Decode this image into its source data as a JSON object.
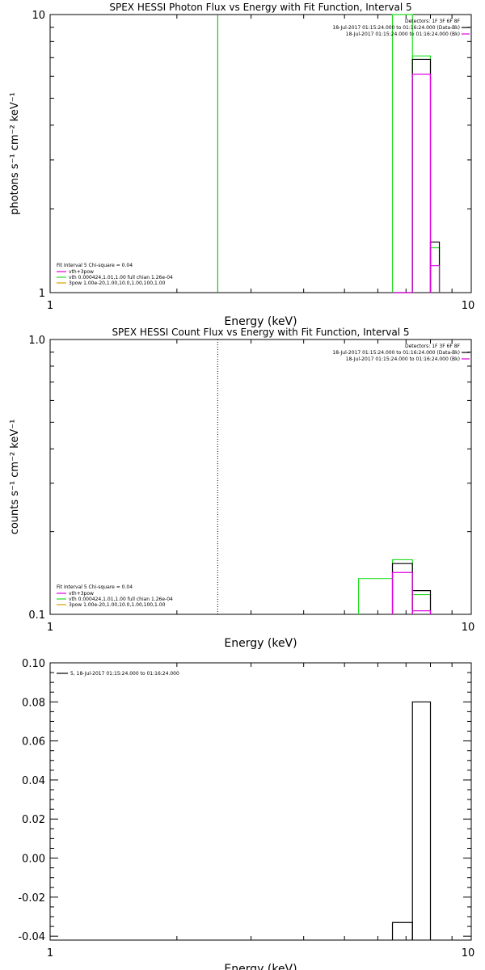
{
  "colors": {
    "black": "#000000",
    "magenta": "#e000e0",
    "green": "#22dd22",
    "orange": "#d8a000",
    "darkgreen": "#00aa00"
  },
  "chart_data": [
    {
      "type": "step",
      "title": "SPEX HESSI Photon Flux vs Energy with Fit Function, Interval 5",
      "xlabel": "Energy (keV)",
      "ylabel": "photons s⁻¹ cm⁻² keV⁻¹",
      "xscale": "log",
      "yscale": "log",
      "xlim": [
        1,
        10
      ],
      "ylim": [
        1,
        10
      ],
      "xticks": [
        "1",
        "10"
      ],
      "yticks": [
        "1",
        "10"
      ],
      "legend_tr": {
        "title": "Detectors: 1F 3F 6F 8F",
        "entries": [
          {
            "label": "18-Jul-2017 01:15:24.000 to 01:16:24.000 (Data-Bk)",
            "color": "#000000"
          },
          {
            "label": "18-Jul-2017 01:15:24.000 to 01:16:24.000 (Bk)",
            "color": "#e000e0"
          }
        ]
      },
      "legend_bl": {
        "header": "Fit Interval 5   Chi-square = 0.04",
        "entries": [
          {
            "label": "vth+3pow",
            "color": "#e000e0"
          },
          {
            "label": "vth 0.000424,1.01,1.00   full chian 1.26e-04",
            "color": "#22dd22"
          },
          {
            "label": "3pow  1.00e-20,1.00,10.0,1.00,100,1.00",
            "color": "#d8a000"
          }
        ]
      },
      "vline": {
        "x": 2.5,
        "style": "solid",
        "color": "#00aa00"
      },
      "series": [
        {
          "color": "#22dd22",
          "bins": [
            [
              6.5,
              7.25,
              20
            ],
            [
              7.25,
              8,
              7.1
            ],
            [
              8,
              8.4,
              1.45
            ]
          ]
        },
        {
          "color": "#000000",
          "bins": [
            [
              6.5,
              7.25,
              1
            ],
            [
              7.25,
              8,
              6.9
            ],
            [
              8,
              8.4,
              1.52
            ]
          ]
        },
        {
          "color": "#e000e0",
          "bins": [
            [
              6.5,
              7.25,
              1
            ],
            [
              7.25,
              8,
              6.1
            ],
            [
              8,
              8.4,
              1.25
            ]
          ]
        }
      ]
    },
    {
      "type": "step",
      "title": "SPEX HESSI Count Flux vs Energy with Fit Function, Interval 5",
      "xlabel": "Energy (keV)",
      "ylabel": "counts s⁻¹ cm⁻² keV⁻¹",
      "xscale": "log",
      "yscale": "log",
      "xlim": [
        1,
        10
      ],
      "ylim": [
        0.1,
        1.0
      ],
      "xticks": [
        "1",
        "10"
      ],
      "yticks": [
        "0.1",
        "1.0"
      ],
      "legend_tr": {
        "title": "Detectors: 1F 3F 6F 8F",
        "entries": [
          {
            "label": "18-Jul-2017 01:15:24.000 to 01:16:24.000 (Data-Bk)",
            "color": "#000000"
          },
          {
            "label": "18-Jul-2017 01:15:24.000 to 01:16:24.000 (Bk)",
            "color": "#e000e0"
          }
        ]
      },
      "legend_bl": {
        "header": "Fit Interval 5   Chi-square = 0.04",
        "entries": [
          {
            "label": "vth+3pow",
            "color": "#e000e0"
          },
          {
            "label": "vth 0.000424,1.01,1.00   full chian 1.26e-04",
            "color": "#22dd22"
          },
          {
            "label": "3pow  1.00e-20,1.00,10.0,1.00,100,1.00",
            "color": "#d8a000"
          }
        ]
      },
      "vline": {
        "x": 2.5,
        "style": "dotted",
        "color": "#000000"
      },
      "series": [
        {
          "color": "#22dd22",
          "bins": [
            [
              5.4,
              6.5,
              0.135
            ],
            [
              6.5,
              7.25,
              0.158
            ],
            [
              7.25,
              8,
              0.118
            ]
          ]
        },
        {
          "color": "#000000",
          "bins": [
            [
              6.5,
              7.25,
              0.153
            ],
            [
              7.25,
              8,
              0.122
            ]
          ]
        },
        {
          "color": "#e000e0",
          "bins": [
            [
              6.5,
              7.25,
              0.142
            ],
            [
              7.25,
              8,
              0.103
            ]
          ]
        }
      ]
    },
    {
      "type": "step",
      "title": "",
      "xlabel": "Energy (keV)",
      "ylabel": "",
      "xscale": "log",
      "yscale": "linear",
      "xlim": [
        1,
        10
      ],
      "ylim": [
        -0.042,
        0.1
      ],
      "xticks": [
        "1",
        "10"
      ],
      "yticks": [
        "-0.04",
        "-0.02",
        "0.00",
        "0.02",
        "0.04",
        "0.06",
        "0.08",
        "0.10"
      ],
      "legend_tl": {
        "entries": [
          {
            "label": "5, 18-Jul-2017 01:15:24.000 to 01:16:24.000",
            "color": "#000000"
          }
        ]
      },
      "series": [
        {
          "color": "#000000",
          "bins": [
            [
              6.5,
              7.25,
              -0.033
            ],
            [
              7.25,
              8,
              0.08
            ]
          ]
        }
      ]
    }
  ]
}
